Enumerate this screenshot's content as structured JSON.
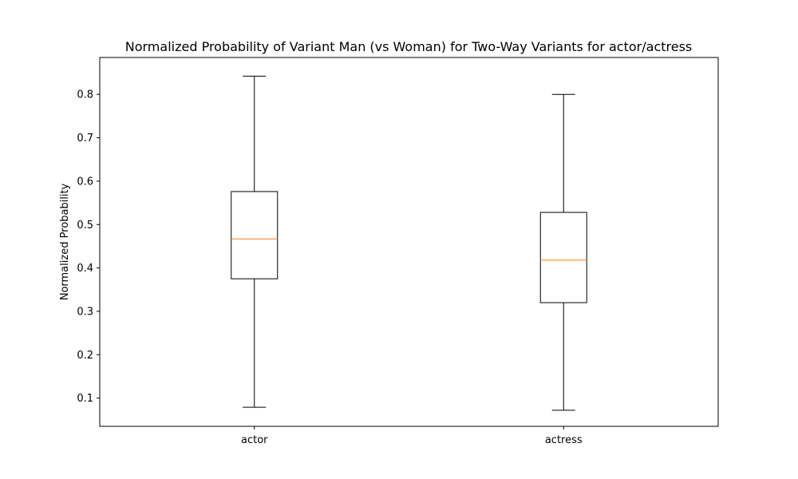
{
  "chart_data": {
    "type": "box",
    "title": "Normalized Probability of Variant Man (vs Woman) for Two-Way Variants for actor/actress",
    "xlabel": "",
    "ylabel": "Normalized Probability",
    "ylim": [
      0.035,
      0.885
    ],
    "yticks": [
      0.1,
      0.2,
      0.3,
      0.4,
      0.5,
      0.6,
      0.7,
      0.8
    ],
    "ytick_labels": [
      "0.1",
      "0.2",
      "0.3",
      "0.4",
      "0.5",
      "0.6",
      "0.7",
      "0.8"
    ],
    "grid": false,
    "categories": [
      "actor",
      "actress"
    ],
    "boxes": [
      {
        "category": "actor",
        "whisker_low": 0.079,
        "q1": 0.375,
        "median": 0.467,
        "q3": 0.576,
        "whisker_high": 0.842
      },
      {
        "category": "actress",
        "whisker_low": 0.072,
        "q1": 0.32,
        "median": 0.418,
        "q3": 0.528,
        "whisker_high": 0.8
      }
    ],
    "colors": {
      "box": "#000000",
      "median": "#ff7f0e",
      "axis": "#000000"
    }
  }
}
